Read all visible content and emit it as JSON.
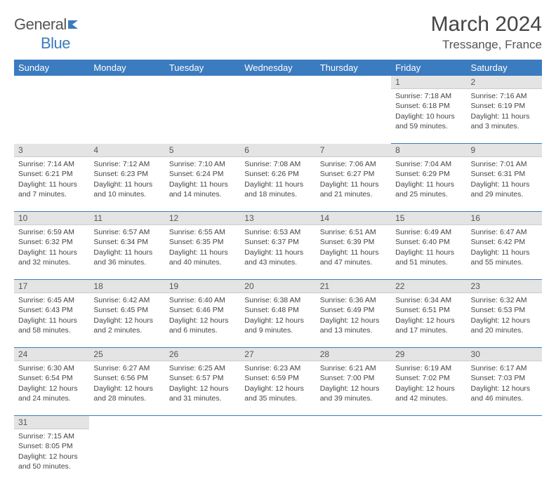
{
  "logo": {
    "part1": "General",
    "part2": "Blue"
  },
  "title": "March 2024",
  "location": "Tressange, France",
  "colors": {
    "header_bg": "#3b7bbf",
    "header_text": "#ffffff",
    "daynum_bg": "#e4e4e4",
    "row_divider": "#3b7bbf",
    "logo_blue": "#3b7bbf",
    "text": "#444444"
  },
  "days": [
    "Sunday",
    "Monday",
    "Tuesday",
    "Wednesday",
    "Thursday",
    "Friday",
    "Saturday"
  ],
  "weeks": [
    [
      null,
      null,
      null,
      null,
      null,
      {
        "n": "1",
        "sunrise": "7:18 AM",
        "sunset": "6:18 PM",
        "daylight": "10 hours and 59 minutes."
      },
      {
        "n": "2",
        "sunrise": "7:16 AM",
        "sunset": "6:19 PM",
        "daylight": "11 hours and 3 minutes."
      }
    ],
    [
      {
        "n": "3",
        "sunrise": "7:14 AM",
        "sunset": "6:21 PM",
        "daylight": "11 hours and 7 minutes."
      },
      {
        "n": "4",
        "sunrise": "7:12 AM",
        "sunset": "6:23 PM",
        "daylight": "11 hours and 10 minutes."
      },
      {
        "n": "5",
        "sunrise": "7:10 AM",
        "sunset": "6:24 PM",
        "daylight": "11 hours and 14 minutes."
      },
      {
        "n": "6",
        "sunrise": "7:08 AM",
        "sunset": "6:26 PM",
        "daylight": "11 hours and 18 minutes."
      },
      {
        "n": "7",
        "sunrise": "7:06 AM",
        "sunset": "6:27 PM",
        "daylight": "11 hours and 21 minutes."
      },
      {
        "n": "8",
        "sunrise": "7:04 AM",
        "sunset": "6:29 PM",
        "daylight": "11 hours and 25 minutes."
      },
      {
        "n": "9",
        "sunrise": "7:01 AM",
        "sunset": "6:31 PM",
        "daylight": "11 hours and 29 minutes."
      }
    ],
    [
      {
        "n": "10",
        "sunrise": "6:59 AM",
        "sunset": "6:32 PM",
        "daylight": "11 hours and 32 minutes."
      },
      {
        "n": "11",
        "sunrise": "6:57 AM",
        "sunset": "6:34 PM",
        "daylight": "11 hours and 36 minutes."
      },
      {
        "n": "12",
        "sunrise": "6:55 AM",
        "sunset": "6:35 PM",
        "daylight": "11 hours and 40 minutes."
      },
      {
        "n": "13",
        "sunrise": "6:53 AM",
        "sunset": "6:37 PM",
        "daylight": "11 hours and 43 minutes."
      },
      {
        "n": "14",
        "sunrise": "6:51 AM",
        "sunset": "6:39 PM",
        "daylight": "11 hours and 47 minutes."
      },
      {
        "n": "15",
        "sunrise": "6:49 AM",
        "sunset": "6:40 PM",
        "daylight": "11 hours and 51 minutes."
      },
      {
        "n": "16",
        "sunrise": "6:47 AM",
        "sunset": "6:42 PM",
        "daylight": "11 hours and 55 minutes."
      }
    ],
    [
      {
        "n": "17",
        "sunrise": "6:45 AM",
        "sunset": "6:43 PM",
        "daylight": "11 hours and 58 minutes."
      },
      {
        "n": "18",
        "sunrise": "6:42 AM",
        "sunset": "6:45 PM",
        "daylight": "12 hours and 2 minutes."
      },
      {
        "n": "19",
        "sunrise": "6:40 AM",
        "sunset": "6:46 PM",
        "daylight": "12 hours and 6 minutes."
      },
      {
        "n": "20",
        "sunrise": "6:38 AM",
        "sunset": "6:48 PM",
        "daylight": "12 hours and 9 minutes."
      },
      {
        "n": "21",
        "sunrise": "6:36 AM",
        "sunset": "6:49 PM",
        "daylight": "12 hours and 13 minutes."
      },
      {
        "n": "22",
        "sunrise": "6:34 AM",
        "sunset": "6:51 PM",
        "daylight": "12 hours and 17 minutes."
      },
      {
        "n": "23",
        "sunrise": "6:32 AM",
        "sunset": "6:53 PM",
        "daylight": "12 hours and 20 minutes."
      }
    ],
    [
      {
        "n": "24",
        "sunrise": "6:30 AM",
        "sunset": "6:54 PM",
        "daylight": "12 hours and 24 minutes."
      },
      {
        "n": "25",
        "sunrise": "6:27 AM",
        "sunset": "6:56 PM",
        "daylight": "12 hours and 28 minutes."
      },
      {
        "n": "26",
        "sunrise": "6:25 AM",
        "sunset": "6:57 PM",
        "daylight": "12 hours and 31 minutes."
      },
      {
        "n": "27",
        "sunrise": "6:23 AM",
        "sunset": "6:59 PM",
        "daylight": "12 hours and 35 minutes."
      },
      {
        "n": "28",
        "sunrise": "6:21 AM",
        "sunset": "7:00 PM",
        "daylight": "12 hours and 39 minutes."
      },
      {
        "n": "29",
        "sunrise": "6:19 AM",
        "sunset": "7:02 PM",
        "daylight": "12 hours and 42 minutes."
      },
      {
        "n": "30",
        "sunrise": "6:17 AM",
        "sunset": "7:03 PM",
        "daylight": "12 hours and 46 minutes."
      }
    ],
    [
      {
        "n": "31",
        "sunrise": "7:15 AM",
        "sunset": "8:05 PM",
        "daylight": "12 hours and 50 minutes."
      },
      null,
      null,
      null,
      null,
      null,
      null
    ]
  ],
  "labels": {
    "sunrise": "Sunrise: ",
    "sunset": "Sunset: ",
    "daylight": "Daylight: "
  }
}
